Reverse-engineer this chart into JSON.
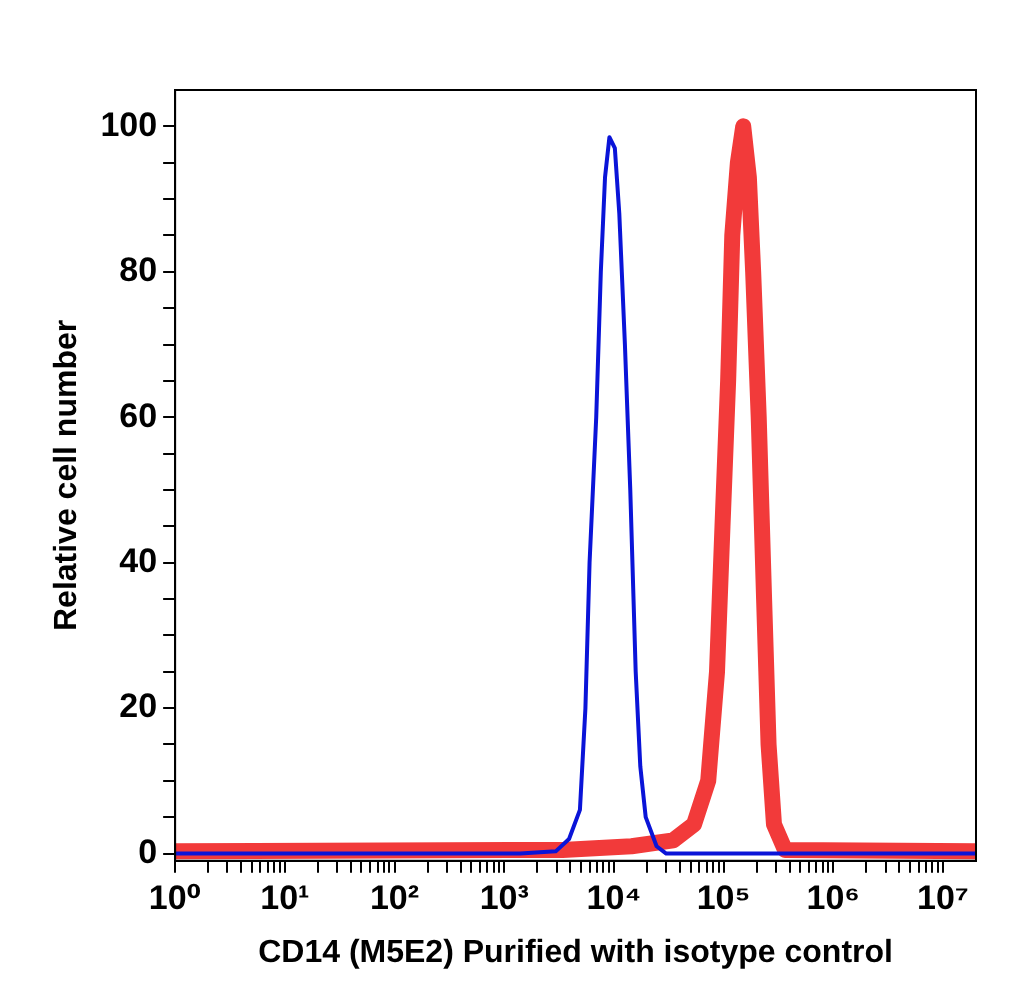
{
  "chart_data": {
    "type": "line",
    "xlabel": "CD14 (M5E2) Purified with isotype control",
    "ylabel": "Relative cell number",
    "log": "x",
    "xlim": [
      1,
      20000000
    ],
    "ylim": [
      -1,
      105
    ],
    "xticks": [
      {
        "value": 1,
        "label": "10⁰"
      },
      {
        "value": 2,
        "label": null
      },
      {
        "value": 3,
        "label": null
      },
      {
        "value": 4,
        "label": null
      },
      {
        "value": 5,
        "label": null
      },
      {
        "value": 6,
        "label": null
      },
      {
        "value": 7,
        "label": null
      },
      {
        "value": 8,
        "label": null
      },
      {
        "value": 9,
        "label": null
      },
      {
        "value": 10,
        "label": "10¹"
      },
      {
        "value": 20,
        "label": null
      },
      {
        "value": 30,
        "label": null
      },
      {
        "value": 40,
        "label": null
      },
      {
        "value": 50,
        "label": null
      },
      {
        "value": 60,
        "label": null
      },
      {
        "value": 70,
        "label": null
      },
      {
        "value": 80,
        "label": null
      },
      {
        "value": 90,
        "label": null
      },
      {
        "value": 100,
        "label": "10²"
      },
      {
        "value": 200,
        "label": null
      },
      {
        "value": 300,
        "label": null
      },
      {
        "value": 400,
        "label": null
      },
      {
        "value": 500,
        "label": null
      },
      {
        "value": 600,
        "label": null
      },
      {
        "value": 700,
        "label": null
      },
      {
        "value": 800,
        "label": null
      },
      {
        "value": 900,
        "label": null
      },
      {
        "value": 1000,
        "label": "10³"
      },
      {
        "value": 2000,
        "label": null
      },
      {
        "value": 3000,
        "label": null
      },
      {
        "value": 4000,
        "label": null
      },
      {
        "value": 5000,
        "label": null
      },
      {
        "value": 6000,
        "label": null
      },
      {
        "value": 7000,
        "label": null
      },
      {
        "value": 8000,
        "label": null
      },
      {
        "value": 9000,
        "label": null
      },
      {
        "value": 10000,
        "label": "10⁴"
      },
      {
        "value": 20000,
        "label": null
      },
      {
        "value": 30000,
        "label": null
      },
      {
        "value": 40000,
        "label": null
      },
      {
        "value": 50000,
        "label": null
      },
      {
        "value": 60000,
        "label": null
      },
      {
        "value": 70000,
        "label": null
      },
      {
        "value": 80000,
        "label": null
      },
      {
        "value": 90000,
        "label": null
      },
      {
        "value": 100000,
        "label": "10⁵"
      },
      {
        "value": 200000,
        "label": null
      },
      {
        "value": 300000,
        "label": null
      },
      {
        "value": 400000,
        "label": null
      },
      {
        "value": 500000,
        "label": null
      },
      {
        "value": 600000,
        "label": null
      },
      {
        "value": 700000,
        "label": null
      },
      {
        "value": 800000,
        "label": null
      },
      {
        "value": 900000,
        "label": null
      },
      {
        "value": 1000000,
        "label": "10⁶"
      },
      {
        "value": 2000000,
        "label": null
      },
      {
        "value": 3000000,
        "label": null
      },
      {
        "value": 4000000,
        "label": null
      },
      {
        "value": 5000000,
        "label": null
      },
      {
        "value": 6000000,
        "label": null
      },
      {
        "value": 7000000,
        "label": null
      },
      {
        "value": 8000000,
        "label": null
      },
      {
        "value": 9000000,
        "label": null
      },
      {
        "value": 10000000,
        "label": "10⁷"
      }
    ],
    "yticks": [
      0,
      {
        "value": 5,
        "label": null
      },
      {
        "value": 10,
        "label": null
      },
      {
        "value": 15,
        "label": null
      },
      20,
      {
        "value": 25,
        "label": null
      },
      {
        "value": 30,
        "label": null
      },
      {
        "value": 35,
        "label": null
      },
      40,
      {
        "value": 45,
        "label": null
      },
      {
        "value": 50,
        "label": null
      },
      {
        "value": 55,
        "label": null
      },
      60,
      {
        "value": 65,
        "label": null
      },
      {
        "value": 70,
        "label": null
      },
      {
        "value": 75,
        "label": null
      },
      80,
      {
        "value": 85,
        "label": null
      },
      {
        "value": 90,
        "label": null
      },
      {
        "value": 95,
        "label": null
      },
      100
    ],
    "grid": false,
    "legend": false,
    "marker": "none",
    "line_style": "solid",
    "series": [
      {
        "color": "#f23a3a",
        "x": [
          1,
          3400,
          14500,
          34700,
          53700,
          72400,
          87100,
          97700,
          110000,
          120000,
          135000,
          151000,
          170000,
          186000,
          209000,
          234000,
          257000,
          288000,
          363000,
          20000000
        ],
        "values": [
          0.3,
          0.5,
          1,
          1.8,
          4,
          10,
          25,
          45,
          65,
          85,
          95,
          100,
          93,
          80,
          60,
          35,
          15,
          4,
          0.5,
          0.3
        ]
      },
      {
        "color": "#0a14d8",
        "x": [
          1,
          1400,
          2950,
          3900,
          4900,
          5500,
          6000,
          6900,
          7600,
          8300,
          9100,
          10200,
          11200,
          12600,
          14100,
          15800,
          17400,
          19500,
          24500,
          30000,
          20000000
        ],
        "values": [
          0,
          0,
          0.3,
          2,
          6,
          20,
          40,
          60,
          80,
          93,
          98.5,
          97,
          88,
          70,
          50,
          25,
          12,
          5,
          1,
          0,
          0
        ]
      }
    ]
  }
}
